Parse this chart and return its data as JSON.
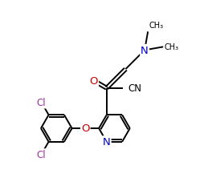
{
  "bg_color": "#ffffff",
  "bond_color": "#000000",
  "nitrogen_color": "#0000cc",
  "oxygen_color": "#cc0000",
  "chlorine_color": "#993399",
  "lw": 1.4,
  "fs": 8.5
}
